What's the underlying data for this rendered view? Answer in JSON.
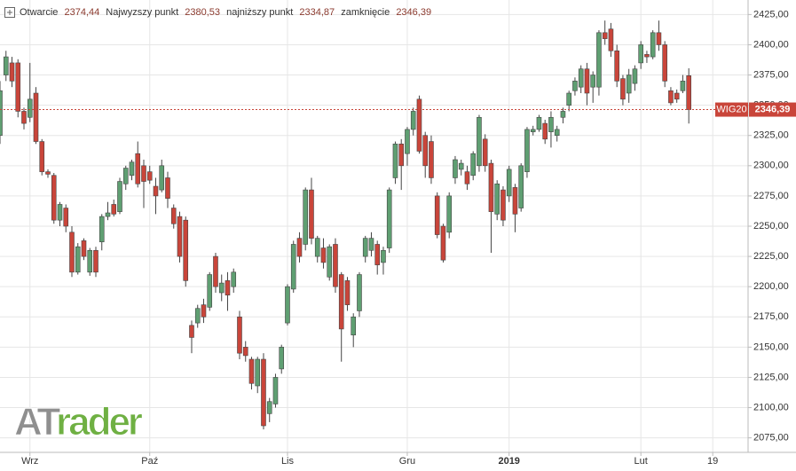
{
  "chart_data": {
    "type": "candlestick",
    "header": {
      "open_label": "Otwarcie",
      "open": "2374,44",
      "high_label": "Najwyzszy punkt",
      "high": "2380,53",
      "low_label": "najniższy punkt",
      "low": "2334,87",
      "close_label": "zamknięcie",
      "close": "2346,39"
    },
    "logo": [
      "AT",
      "rader"
    ],
    "up_color": "#5f9f72",
    "down_color": "#c9453a",
    "grid": true,
    "ylim": [
      2063,
      2437
    ],
    "xlim": [
      0,
      124.9
    ],
    "yticks": [
      {
        "value": 2075,
        "label": "2075,00"
      },
      {
        "value": 2100,
        "label": "2100,00"
      },
      {
        "value": 2125,
        "label": "2125,00"
      },
      {
        "value": 2150,
        "label": "2150,00"
      },
      {
        "value": 2175,
        "label": "2175,00"
      },
      {
        "value": 2200,
        "label": "2200,00"
      },
      {
        "value": 2225,
        "label": "2225,00"
      },
      {
        "value": 2250,
        "label": "2250,00"
      },
      {
        "value": 2275,
        "label": "2275,00"
      },
      {
        "value": 2300,
        "label": "2300,00"
      },
      {
        "value": 2325,
        "label": "2325,00"
      },
      {
        "value": 2350,
        "label": "2350,00"
      },
      {
        "value": 2375,
        "label": "2375,00"
      },
      {
        "value": 2400,
        "label": "2400,00"
      },
      {
        "value": 2425,
        "label": "2425,00"
      }
    ],
    "xticks": [
      {
        "value": 5,
        "label": "Wrz"
      },
      {
        "value": 25,
        "label": "Paź"
      },
      {
        "value": 48,
        "label": "Lis"
      },
      {
        "value": 68,
        "label": "Gru"
      },
      {
        "value": 85,
        "label": "2019"
      },
      {
        "value": 107,
        "label": "Lut"
      },
      {
        "value": 119,
        "label": "19"
      }
    ],
    "last": {
      "name": "WIG20",
      "value": 2346.39,
      "label": "2346,39"
    },
    "candles": [
      [
        2325,
        2370,
        2318,
        2362
      ],
      [
        2375,
        2395,
        2370,
        2390
      ],
      [
        2385,
        2390,
        2365,
        2370
      ],
      [
        2385,
        2388,
        2340,
        2345
      ],
      [
        2345,
        2348,
        2330,
        2335
      ],
      [
        2340,
        2385,
        2336,
        2355
      ],
      [
        2360,
        2365,
        2318,
        2320
      ],
      [
        2320,
        2322,
        2292,
        2295
      ],
      [
        2295,
        2297,
        2290,
        2293
      ],
      [
        2292,
        2294,
        2252,
        2255
      ],
      [
        2255,
        2270,
        2250,
        2268
      ],
      [
        2265,
        2268,
        2245,
        2250
      ],
      [
        2245,
        2250,
        2208,
        2212
      ],
      [
        2212,
        2236,
        2210,
        2233
      ],
      [
        2238,
        2240,
        2222,
        2225
      ],
      [
        2212,
        2232,
        2209,
        2230
      ],
      [
        2230,
        2233,
        2208,
        2212
      ],
      [
        2237,
        2260,
        2230,
        2258
      ],
      [
        2258,
        2270,
        2255,
        2261
      ],
      [
        2268,
        2272,
        2258,
        2260
      ],
      [
        2262,
        2290,
        2260,
        2287
      ],
      [
        2285,
        2300,
        2280,
        2298
      ],
      [
        2292,
        2305,
        2288,
        2303
      ],
      [
        2310,
        2320,
        2282,
        2285
      ],
      [
        2300,
        2305,
        2265,
        2287
      ],
      [
        2295,
        2300,
        2285,
        2288
      ],
      [
        2283,
        2290,
        2260,
        2275
      ],
      [
        2280,
        2305,
        2278,
        2300
      ],
      [
        2290,
        2295,
        2265,
        2273
      ],
      [
        2265,
        2268,
        2248,
        2252
      ],
      [
        2258,
        2262,
        2220,
        2225
      ],
      [
        2255,
        2258,
        2200,
        2205
      ],
      [
        2168,
        2172,
        2145,
        2158
      ],
      [
        2170,
        2185,
        2166,
        2182
      ],
      [
        2185,
        2190,
        2170,
        2175
      ],
      [
        2183,
        2212,
        2180,
        2210
      ],
      [
        2225,
        2228,
        2195,
        2200
      ],
      [
        2195,
        2210,
        2188,
        2203
      ],
      [
        2205,
        2212,
        2180,
        2193
      ],
      [
        2200,
        2215,
        2195,
        2212
      ],
      [
        2175,
        2180,
        2140,
        2145
      ],
      [
        2150,
        2155,
        2138,
        2143
      ],
      [
        2140,
        2142,
        2115,
        2120
      ],
      [
        2118,
        2142,
        2112,
        2140
      ],
      [
        2140,
        2145,
        2082,
        2085
      ],
      [
        2095,
        2108,
        2088,
        2105
      ],
      [
        2103,
        2128,
        2100,
        2125
      ],
      [
        2132,
        2152,
        2128,
        2150
      ],
      [
        2170,
        2202,
        2168,
        2200
      ],
      [
        2198,
        2238,
        2195,
        2235
      ],
      [
        2240,
        2245,
        2220,
        2225
      ],
      [
        2235,
        2282,
        2230,
        2280
      ],
      [
        2280,
        2290,
        2235,
        2240
      ],
      [
        2225,
        2242,
        2220,
        2240
      ],
      [
        2232,
        2240,
        2215,
        2220
      ],
      [
        2208,
        2235,
        2205,
        2233
      ],
      [
        2235,
        2240,
        2195,
        2200
      ],
      [
        2210,
        2212,
        2138,
        2165
      ],
      [
        2205,
        2208,
        2180,
        2185
      ],
      [
        2160,
        2178,
        2150,
        2175
      ],
      [
        2180,
        2212,
        2175,
        2210
      ],
      [
        2225,
        2242,
        2220,
        2240
      ],
      [
        2230,
        2245,
        2225,
        2240
      ],
      [
        2235,
        2238,
        2210,
        2218
      ],
      [
        2220,
        2233,
        2210,
        2230
      ],
      [
        2232,
        2282,
        2228,
        2280
      ],
      [
        2290,
        2320,
        2285,
        2318
      ],
      [
        2318,
        2322,
        2280,
        2300
      ],
      [
        2310,
        2332,
        2300,
        2330
      ],
      [
        2330,
        2348,
        2325,
        2345
      ],
      [
        2355,
        2358,
        2310,
        2312
      ],
      [
        2325,
        2328,
        2290,
        2300
      ],
      [
        2320,
        2325,
        2285,
        2290
      ],
      [
        2275,
        2278,
        2240,
        2243
      ],
      [
        2250,
        2252,
        2220,
        2222
      ],
      [
        2245,
        2278,
        2240,
        2275
      ],
      [
        2290,
        2308,
        2285,
        2305
      ],
      [
        2297,
        2305,
        2292,
        2302
      ],
      [
        2295,
        2300,
        2280,
        2285
      ],
      [
        2292,
        2312,
        2288,
        2310
      ],
      [
        2300,
        2342,
        2295,
        2340
      ],
      [
        2322,
        2326,
        2295,
        2300
      ],
      [
        2302,
        2305,
        2228,
        2262
      ],
      [
        2260,
        2288,
        2255,
        2285
      ],
      [
        2280,
        2283,
        2250,
        2255
      ],
      [
        2275,
        2300,
        2270,
        2297
      ],
      [
        2282,
        2285,
        2245,
        2260
      ],
      [
        2265,
        2302,
        2262,
        2300
      ],
      [
        2295,
        2332,
        2290,
        2330
      ],
      [
        2328,
        2333,
        2325,
        2330
      ],
      [
        2330,
        2342,
        2328,
        2340
      ],
      [
        2335,
        2338,
        2318,
        2322
      ],
      [
        2328,
        2345,
        2315,
        2340
      ],
      [
        2325,
        2333,
        2320,
        2330
      ],
      [
        2340,
        2348,
        2335,
        2345
      ],
      [
        2350,
        2362,
        2345,
        2360
      ],
      [
        2362,
        2373,
        2358,
        2370
      ],
      [
        2365,
        2383,
        2360,
        2380
      ],
      [
        2380,
        2385,
        2350,
        2360
      ],
      [
        2365,
        2378,
        2352,
        2375
      ],
      [
        2365,
        2412,
        2358,
        2410
      ],
      [
        2410,
        2420,
        2400,
        2405
      ],
      [
        2413,
        2418,
        2390,
        2395
      ],
      [
        2395,
        2400,
        2365,
        2370
      ],
      [
        2372,
        2375,
        2350,
        2355
      ],
      [
        2360,
        2380,
        2352,
        2375
      ],
      [
        2368,
        2383,
        2362,
        2380
      ],
      [
        2385,
        2403,
        2380,
        2400
      ],
      [
        2392,
        2395,
        2385,
        2390
      ],
      [
        2390,
        2412,
        2388,
        2410
      ],
      [
        2410,
        2420,
        2395,
        2400
      ],
      [
        2400,
        2403,
        2365,
        2370
      ],
      [
        2362,
        2365,
        2350,
        2352
      ],
      [
        2360,
        2363,
        2352,
        2355
      ],
      [
        2362,
        2375,
        2360,
        2370
      ],
      [
        2374.44,
        2380.53,
        2334.87,
        2346.39
      ]
    ]
  }
}
